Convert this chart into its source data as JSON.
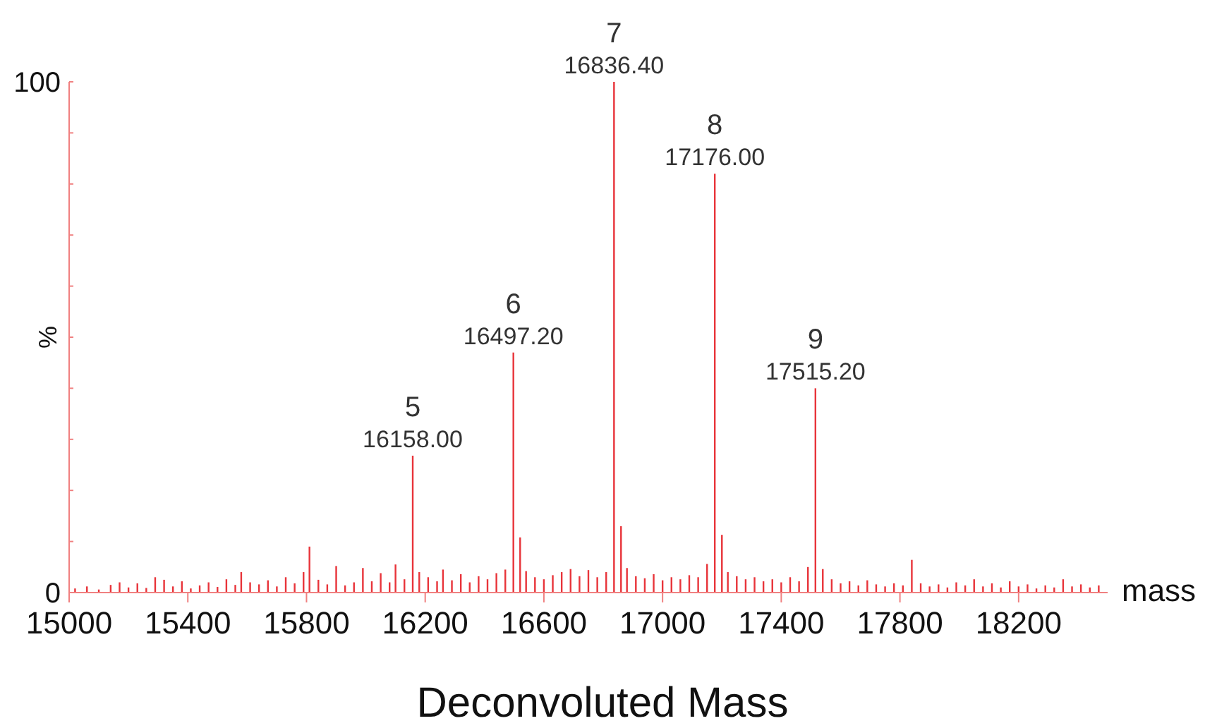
{
  "chart_data": {
    "type": "bar",
    "title": "Deconvoluted Mass",
    "xlabel": "mass",
    "ylabel": "%",
    "x": [
      15020,
      15060,
      15100,
      15140,
      15170,
      15200,
      15230,
      15260,
      15290,
      15320,
      15350,
      15380,
      15410,
      15440,
      15470,
      15500,
      15530,
      15560,
      15580,
      15610,
      15640,
      15670,
      15700,
      15730,
      15760,
      15790,
      15810,
      15840,
      15870,
      15900,
      15930,
      15960,
      15990,
      16020,
      16050,
      16080,
      16100,
      16130,
      16158,
      16180,
      16210,
      16240,
      16260,
      16290,
      16320,
      16350,
      16380,
      16410,
      16440,
      16470,
      16497.2,
      16520,
      16540,
      16570,
      16600,
      16630,
      16660,
      16690,
      16720,
      16750,
      16780,
      16810,
      16836.4,
      16860,
      16880,
      16910,
      16940,
      16970,
      17000,
      17030,
      17060,
      17090,
      17120,
      17150,
      17176,
      17200,
      17220,
      17250,
      17280,
      17310,
      17340,
      17370,
      17400,
      17430,
      17460,
      17490,
      17515.2,
      17540,
      17570,
      17600,
      17630,
      17660,
      17690,
      17720,
      17750,
      17780,
      17810,
      17840,
      17870,
      17900,
      17930,
      17960,
      17990,
      18020,
      18050,
      18080,
      18110,
      18140,
      18170,
      18200,
      18230,
      18260,
      18290,
      18320,
      18350,
      18380,
      18410,
      18440,
      18470
    ],
    "values": [
      0.8,
      1.2,
      0.6,
      1.5,
      2.0,
      1.0,
      1.8,
      0.9,
      3.0,
      2.5,
      1.2,
      2.2,
      0.8,
      1.4,
      2.0,
      1.1,
      2.6,
      1.5,
      4.0,
      2.0,
      1.6,
      2.4,
      1.2,
      3.0,
      1.8,
      4.0,
      9.0,
      2.5,
      1.6,
      5.2,
      1.4,
      2.0,
      4.8,
      2.2,
      3.8,
      2.0,
      5.5,
      2.6,
      26.8,
      4.0,
      3.0,
      2.2,
      4.5,
      2.4,
      3.6,
      2.0,
      3.2,
      2.6,
      3.8,
      4.5,
      47,
      10.8,
      4.2,
      3.0,
      2.6,
      3.4,
      4.0,
      4.6,
      3.2,
      4.4,
      3.0,
      4.0,
      100,
      13,
      4.8,
      3.2,
      2.8,
      3.6,
      2.4,
      3.0,
      2.6,
      3.4,
      3.0,
      5.6,
      82,
      11.3,
      4.0,
      3.2,
      2.6,
      3.0,
      2.2,
      2.6,
      2.0,
      3.0,
      2.2,
      5.0,
      40,
      4.6,
      2.6,
      1.8,
      2.2,
      1.4,
      2.4,
      1.6,
      1.2,
      1.8,
      1.4,
      6.4,
      1.8,
      1.2,
      1.6,
      1.0,
      2.0,
      1.4,
      2.6,
      1.2,
      1.8,
      1.0,
      2.2,
      1.2,
      1.6,
      0.8,
      1.4,
      1.0,
      2.6,
      1.2,
      1.6,
      1.0,
      1.4
    ],
    "color": "#e8343a",
    "xlim": [
      15000,
      18500
    ],
    "xticks": [
      15000,
      15400,
      15800,
      16200,
      16600,
      17000,
      17400,
      17800,
      18200
    ],
    "ylim": [
      0,
      100
    ],
    "yticks": [
      0,
      {
        "value": 10,
        "label": null
      },
      {
        "value": 20,
        "label": null
      },
      {
        "value": 30,
        "label": null
      },
      {
        "value": 40,
        "label": null
      },
      {
        "value": 50,
        "label": null
      },
      {
        "value": 60,
        "label": null
      },
      {
        "value": 70,
        "label": null
      },
      {
        "value": 80,
        "label": null
      },
      {
        "value": 90,
        "label": null
      },
      100
    ],
    "grid": false,
    "annotations": [
      {
        "text": "16158.00",
        "x": 16158,
        "y": 26.8
      },
      {
        "text": "5",
        "x": 16158,
        "y": 26.8
      },
      {
        "text": "16497.20",
        "x": 16497.2,
        "y": 47
      },
      {
        "text": "6",
        "x": 16497.2,
        "y": 47
      },
      {
        "text": "16836.40",
        "x": 16836.4,
        "y": 100
      },
      {
        "text": "7",
        "x": 16836.4,
        "y": 100
      },
      {
        "text": "17176.00",
        "x": 17176,
        "y": 82
      },
      {
        "text": "8",
        "x": 17176,
        "y": 82
      },
      {
        "text": "17515.20",
        "x": 17515.2,
        "y": 40
      },
      {
        "text": "9",
        "x": 17515.2,
        "y": 40
      }
    ]
  }
}
